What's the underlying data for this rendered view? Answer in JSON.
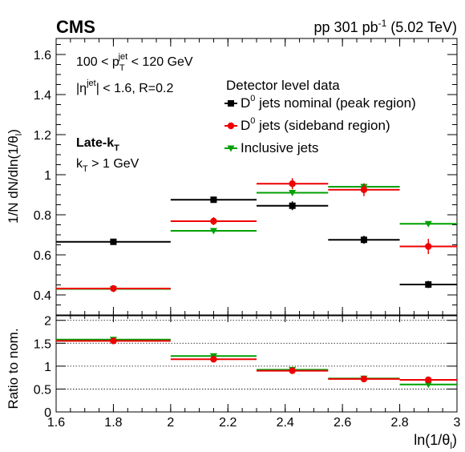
{
  "header": {
    "experiment": "CMS",
    "beam_info_prefix": "pp 301 pb",
    "beam_info_sup": "-1",
    "beam_info_suffix": " (5.02 TeV)"
  },
  "cuts": {
    "pt_prefix": "100 < p",
    "pt_sub": "T",
    "pt_sup": "jet",
    "pt_suffix": " < 120 GeV",
    "eta_prefix": "|η",
    "eta_sup": "jet",
    "eta_suffix": "| < 1.6, R=0.2",
    "algo_main": "Late-k",
    "algo_sub": "T",
    "kt_main": "k",
    "kt_sub": "T",
    "kt_suffix": " > 1 GeV"
  },
  "legend": {
    "header": "Detector level data",
    "position": "top-right",
    "entries": [
      {
        "prefix": "D",
        "sup": "0",
        "suffix": " jets nominal (peak region)",
        "color": "#000000",
        "marker": "square"
      },
      {
        "prefix": "D",
        "sup": "0",
        "suffix": " jets (sideband region)",
        "color": "#ee0000",
        "marker": "circle"
      },
      {
        "prefix": "",
        "sup": "",
        "suffix": "Inclusive jets",
        "color": "#00a000",
        "marker": "triangle-down"
      }
    ]
  },
  "axes": {
    "ylabel_top": "1/N dN/dln(1/θ",
    "ylabel_top_sub": "l",
    "ylabel_top_end": ")",
    "ylabel_bottom": "Ratio to nom.",
    "xlabel": "ln(1/θ",
    "xlabel_sub": "l",
    "xlabel_end": ")"
  },
  "chart_data": [
    {
      "type": "scatter",
      "panel": "main",
      "bin_edges": [
        1.6,
        2.0,
        2.3,
        2.55,
        2.8,
        3.0
      ],
      "x": [
        1.8,
        2.15,
        2.425,
        2.675,
        2.9
      ],
      "xlim": [
        1.6,
        3.0
      ],
      "ylim": [
        0.3,
        1.68
      ],
      "yticks": [
        0.4,
        0.6,
        0.8,
        1,
        1.2,
        1.4,
        1.6
      ],
      "series": [
        {
          "name": "D0 jets nominal (peak region)",
          "values": [
            0.665,
            0.875,
            0.845,
            0.675,
            0.452
          ],
          "errors": [
            0.01,
            0.015,
            0.022,
            0.02,
            0.018
          ]
        },
        {
          "name": "D0 jets (sideband region)",
          "values": [
            0.432,
            0.768,
            0.955,
            0.925,
            0.642
          ],
          "errors": [
            0.008,
            0.02,
            0.028,
            0.032,
            0.038
          ]
        },
        {
          "name": "Inclusive jets",
          "values": [
            0.43,
            0.72,
            0.91,
            0.94,
            0.755
          ],
          "errors": [
            0.003,
            0.004,
            0.005,
            0.005,
            0.005
          ]
        }
      ]
    },
    {
      "type": "scatter",
      "panel": "ratio",
      "bin_edges": [
        1.6,
        2.0,
        2.3,
        2.55,
        2.8,
        3.0
      ],
      "x": [
        1.8,
        2.15,
        2.425,
        2.675,
        2.9
      ],
      "xlim": [
        1.6,
        3.0
      ],
      "ylim": [
        0,
        2.1
      ],
      "yticks": [
        0,
        0.5,
        1,
        1.5,
        2
      ],
      "xticks": [
        1.6,
        1.8,
        2,
        2.2,
        2.4,
        2.6,
        2.8,
        3
      ],
      "reference_lines": [
        0.5,
        1,
        1.5,
        2
      ],
      "series": [
        {
          "name": "D0 jets (sideband region)",
          "values": [
            1.55,
            1.15,
            0.9,
            0.72,
            0.7
          ],
          "errors": [
            0.03,
            0.04,
            0.04,
            0.04,
            0.06
          ]
        },
        {
          "name": "Inclusive jets",
          "values": [
            1.58,
            1.22,
            0.92,
            0.73,
            0.6
          ],
          "errors": [
            0.03,
            0.04,
            0.04,
            0.04,
            0.05
          ]
        }
      ]
    }
  ]
}
